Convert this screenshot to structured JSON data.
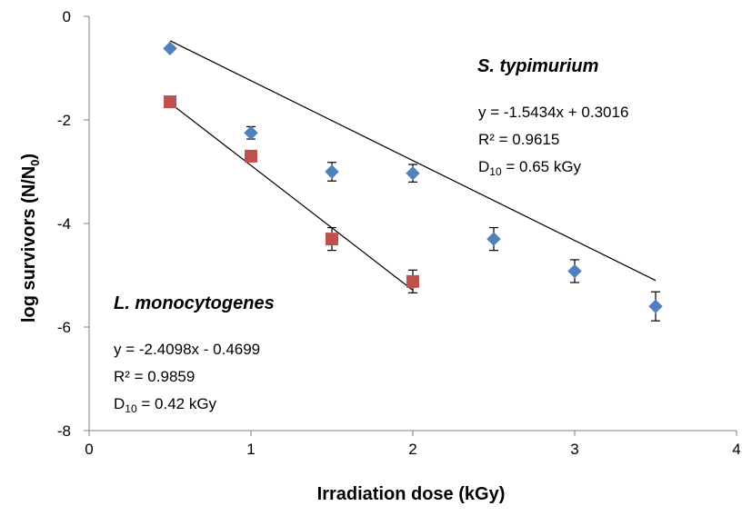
{
  "chart_data": {
    "type": "scatter",
    "xlabel": "Irradiation dose (kGy)",
    "ylabel_main": "log survivors (N/N",
    "ylabel_sub": "0",
    "ylabel_close": ")",
    "xlim": [
      0,
      4
    ],
    "ylim": [
      -8,
      0
    ],
    "x_ticks": [
      "0",
      "1",
      "2",
      "3",
      "4"
    ],
    "y_ticks": [
      "0",
      "-2",
      "-4",
      "-6",
      "-8"
    ],
    "grid": false,
    "series": [
      {
        "name": "S. typimurium",
        "marker": "diamond",
        "color": "#4F81BD",
        "x": [
          0.5,
          1.0,
          1.5,
          2.0,
          2.5,
          3.0,
          3.5
        ],
        "y": [
          -0.62,
          -2.25,
          -3.0,
          -3.03,
          -4.3,
          -4.92,
          -5.6
        ],
        "err": [
          0.0,
          0.12,
          0.18,
          0.17,
          0.22,
          0.22,
          0.28
        ],
        "fit": {
          "slope": -1.5434,
          "intercept": 0.3016,
          "x_range": [
            0.5,
            3.5
          ]
        },
        "equation": "y = -1.5434x + 0.3016",
        "r2": "R² = 0.9615",
        "d10_prefix": "D",
        "d10_sub": "10",
        "d10_value": " = 0.65 kGy"
      },
      {
        "name": "L. monocytogenes",
        "marker": "square",
        "color": "#C0504D",
        "x": [
          0.5,
          1.0,
          1.5,
          2.0
        ],
        "y": [
          -1.65,
          -2.7,
          -4.3,
          -5.12
        ],
        "err": [
          0.0,
          0.0,
          0.22,
          0.22
        ],
        "fit": {
          "slope": -2.4098,
          "intercept": -0.4699,
          "x_range": [
            0.5,
            2.0
          ]
        },
        "equation": "y = -2.4098x - 0.4699",
        "r2": "R² = 0.9859",
        "d10_prefix": "D",
        "d10_sub": "10",
        "d10_value": " = 0.42 kGy"
      }
    ]
  }
}
